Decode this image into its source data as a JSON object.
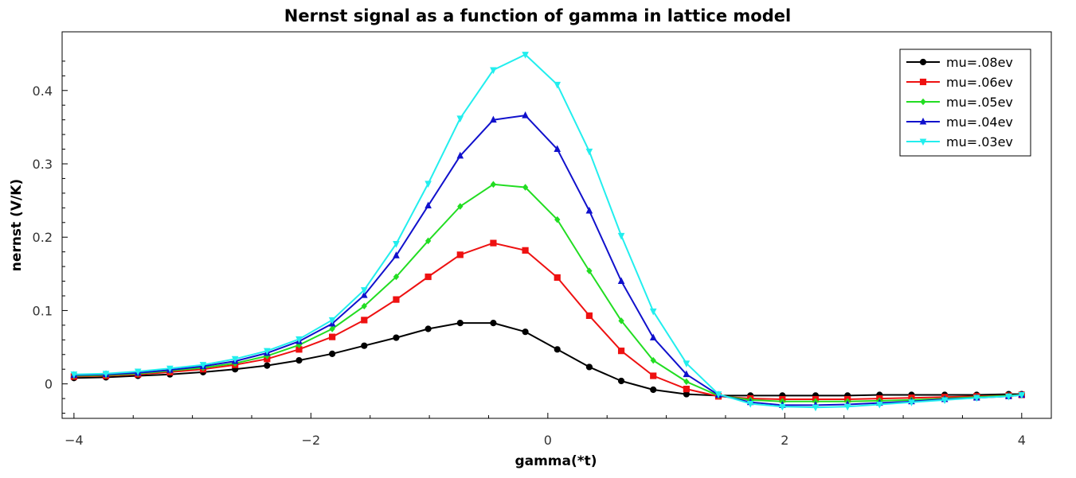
{
  "chart_data": {
    "type": "line",
    "title": "Nernst signal as a function of gamma in lattice model",
    "xlabel": "gamma(*t)",
    "ylabel": "nernst (V/K)",
    "xlim": [
      -4.1,
      4.25
    ],
    "ylim": [
      -0.047,
      0.48
    ],
    "xticks": [
      -4,
      -2,
      0,
      2,
      4
    ],
    "xtick_labels": [
      "−4",
      "−2",
      "0",
      "2",
      "4"
    ],
    "yticks": [
      0,
      0.1,
      0.2,
      0.3,
      0.4
    ],
    "ytick_labels": [
      "0",
      "0.1",
      "0.2",
      "0.3",
      "0.4"
    ],
    "grid": false,
    "legend_position": "top-right",
    "x": [
      -4.0,
      -3.73,
      -3.46,
      -3.19,
      -2.91,
      -2.64,
      -2.37,
      -2.1,
      -1.82,
      -1.55,
      -1.28,
      -1.01,
      -0.74,
      -0.46,
      -0.19,
      0.08,
      0.35,
      0.62,
      0.89,
      1.17,
      1.44,
      1.71,
      1.98,
      2.26,
      2.53,
      2.8,
      3.07,
      3.35,
      3.62,
      3.89,
      4.0
    ],
    "series": [
      {
        "name": "mu=.08ev",
        "color": "#000000",
        "marker": "circle",
        "values": [
          0.008,
          0.009,
          0.011,
          0.013,
          0.016,
          0.02,
          0.025,
          0.032,
          0.041,
          0.052,
          0.063,
          0.075,
          0.083,
          0.083,
          0.071,
          0.047,
          0.023,
          0.004,
          -0.008,
          -0.014,
          -0.016,
          -0.016,
          -0.016,
          -0.016,
          -0.016,
          -0.015,
          -0.015,
          -0.015,
          -0.015,
          -0.014,
          -0.014
        ]
      },
      {
        "name": "mu=.06ev",
        "color": "#ee1111",
        "marker": "square",
        "values": [
          0.01,
          0.011,
          0.013,
          0.016,
          0.02,
          0.026,
          0.034,
          0.047,
          0.064,
          0.087,
          0.115,
          0.146,
          0.176,
          0.192,
          0.182,
          0.145,
          0.093,
          0.045,
          0.011,
          -0.007,
          -0.017,
          -0.02,
          -0.021,
          -0.021,
          -0.021,
          -0.02,
          -0.019,
          -0.018,
          -0.017,
          -0.016,
          -0.015
        ]
      },
      {
        "name": "mu=.05ev",
        "color": "#22dd22",
        "marker": "diamond",
        "values": [
          0.011,
          0.012,
          0.014,
          0.018,
          0.022,
          0.028,
          0.038,
          0.053,
          0.075,
          0.106,
          0.146,
          0.195,
          0.242,
          0.272,
          0.268,
          0.224,
          0.154,
          0.086,
          0.032,
          0.003,
          -0.016,
          -0.022,
          -0.024,
          -0.024,
          -0.024,
          -0.023,
          -0.022,
          -0.02,
          -0.018,
          -0.016,
          -0.015
        ]
      },
      {
        "name": "mu=.04ev",
        "color": "#1111cc",
        "marker": "triangle-up",
        "values": [
          0.012,
          0.013,
          0.015,
          0.019,
          0.024,
          0.031,
          0.042,
          0.058,
          0.082,
          0.121,
          0.175,
          0.243,
          0.311,
          0.36,
          0.366,
          0.32,
          0.236,
          0.14,
          0.063,
          0.013,
          -0.015,
          -0.025,
          -0.029,
          -0.029,
          -0.028,
          -0.026,
          -0.024,
          -0.021,
          -0.019,
          -0.017,
          -0.015
        ]
      },
      {
        "name": "mu=.03ev",
        "color": "#22eeee",
        "marker": "triangle-down",
        "values": [
          0.013,
          0.014,
          0.017,
          0.021,
          0.026,
          0.034,
          0.045,
          0.061,
          0.087,
          0.128,
          0.191,
          0.273,
          0.362,
          0.428,
          0.449,
          0.408,
          0.317,
          0.202,
          0.099,
          0.028,
          -0.014,
          -0.027,
          -0.031,
          -0.032,
          -0.031,
          -0.028,
          -0.025,
          -0.022,
          -0.019,
          -0.017,
          -0.015
        ]
      }
    ]
  }
}
